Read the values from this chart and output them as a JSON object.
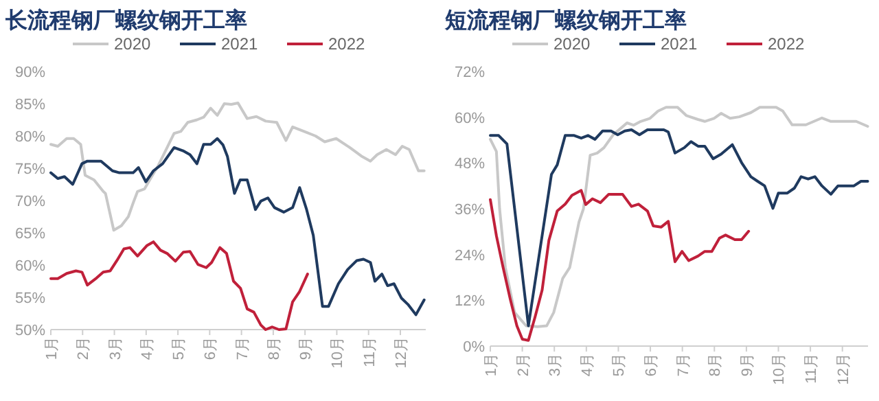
{
  "chart_data": [
    {
      "type": "line",
      "title": "长流程钢厂螺纹钢开工率",
      "legend": "top",
      "grid": false,
      "line_style": "solid",
      "marker": "none",
      "xlim": [
        1,
        12.8
      ],
      "xticks": [
        {
          "value": 1,
          "label": "1月"
        },
        {
          "value": 2,
          "label": "2月"
        },
        {
          "value": 3,
          "label": "3月"
        },
        {
          "value": 4,
          "label": "4月"
        },
        {
          "value": 5,
          "label": "5月"
        },
        {
          "value": 6,
          "label": "6月"
        },
        {
          "value": 7,
          "label": "7月"
        },
        {
          "value": 8,
          "label": "8月"
        },
        {
          "value": 9,
          "label": "9月"
        },
        {
          "value": 10,
          "label": "10月"
        },
        {
          "value": 11,
          "label": "11月"
        },
        {
          "value": 12,
          "label": "12月"
        }
      ],
      "ylim": [
        50,
        90
      ],
      "yticks": [
        {
          "value": 50,
          "label": "50%"
        },
        {
          "value": 55,
          "label": "55%"
        },
        {
          "value": 60,
          "label": "60%"
        },
        {
          "value": 65,
          "label": "65%"
        },
        {
          "value": 70,
          "label": "70%"
        },
        {
          "value": 75,
          "label": "75%"
        },
        {
          "value": 80,
          "label": "80%"
        },
        {
          "value": 85,
          "label": "85%"
        },
        {
          "value": 90,
          "label": "90%"
        }
      ],
      "series": [
        {
          "name": "2020",
          "color": "#c8c8c8",
          "x": [
            1.0,
            1.22,
            1.5,
            1.72,
            1.94,
            2.08,
            2.36,
            2.65,
            2.72,
            2.98,
            3.22,
            3.44,
            3.59,
            3.73,
            3.95,
            4.16,
            4.38,
            4.66,
            4.88,
            5.09,
            5.31,
            5.6,
            5.81,
            6.03,
            6.24,
            6.46,
            6.68,
            6.89,
            7.18,
            7.47,
            7.76,
            8.11,
            8.4,
            8.61,
            8.97,
            9.33,
            9.62,
            9.98,
            10.41,
            10.77,
            11.06,
            11.27,
            11.56,
            11.85,
            12.06,
            12.28,
            12.57,
            12.75
          ],
          "values": [
            78.7,
            78.4,
            79.6,
            79.6,
            78.7,
            73.9,
            73.2,
            71.4,
            71.1,
            65.4,
            66.1,
            67.5,
            69.6,
            71.4,
            71.8,
            73.6,
            75.4,
            78.2,
            80.4,
            80.7,
            82.1,
            82.5,
            82.9,
            84.3,
            83.2,
            85.0,
            84.9,
            85.1,
            82.7,
            83.0,
            82.3,
            82.1,
            79.3,
            81.4,
            80.7,
            80.0,
            79.1,
            79.6,
            78.2,
            76.9,
            76.1,
            77.1,
            77.9,
            77.1,
            78.4,
            77.9,
            74.6,
            74.6
          ]
        },
        {
          "name": "2021",
          "color": "#1f3a5f",
          "x": [
            1.0,
            1.22,
            1.43,
            1.69,
            1.98,
            2.15,
            2.58,
            2.94,
            3.16,
            3.59,
            3.76,
            3.99,
            4.23,
            4.52,
            4.88,
            5.16,
            5.38,
            5.6,
            5.81,
            6.03,
            6.24,
            6.42,
            6.56,
            6.78,
            6.96,
            7.18,
            7.44,
            7.61,
            7.83,
            8.04,
            8.33,
            8.61,
            8.83,
            9.05,
            9.26,
            9.55,
            9.74,
            10.05,
            10.34,
            10.63,
            10.84,
            11.06,
            11.2,
            11.42,
            11.6,
            11.8,
            12.03,
            12.24,
            12.49,
            12.75
          ],
          "values": [
            74.3,
            73.4,
            73.7,
            72.5,
            75.7,
            76.1,
            76.1,
            74.6,
            74.3,
            74.3,
            75.1,
            72.9,
            74.6,
            75.7,
            78.2,
            77.7,
            77.1,
            75.7,
            78.7,
            78.7,
            79.6,
            78.6,
            76.8,
            71.1,
            73.2,
            73.2,
            68.6,
            69.9,
            70.4,
            68.9,
            68.2,
            68.9,
            72.0,
            68.6,
            64.6,
            53.6,
            53.6,
            57.1,
            59.3,
            60.7,
            60.9,
            60.4,
            57.5,
            58.6,
            56.8,
            57.1,
            54.9,
            53.9,
            52.3,
            54.6
          ]
        },
        {
          "name": "2022",
          "color": "#c0203a",
          "x": [
            1.0,
            1.22,
            1.5,
            1.79,
            1.98,
            2.15,
            2.44,
            2.65,
            2.87,
            3.08,
            3.3,
            3.49,
            3.73,
            4.02,
            4.23,
            4.45,
            4.66,
            4.92,
            5.17,
            5.38,
            5.63,
            5.89,
            6.06,
            6.32,
            6.53,
            6.75,
            6.97,
            7.18,
            7.39,
            7.61,
            7.76,
            7.97,
            8.18,
            8.4,
            8.61,
            8.83,
            9.08
          ],
          "values": [
            57.9,
            57.9,
            58.7,
            59.1,
            58.9,
            56.9,
            58.0,
            58.9,
            59.1,
            60.7,
            62.5,
            62.7,
            61.4,
            63.0,
            63.6,
            62.3,
            61.8,
            60.6,
            62.0,
            62.1,
            60.1,
            59.6,
            60.4,
            62.7,
            61.8,
            57.5,
            56.4,
            53.2,
            52.7,
            50.7,
            50.0,
            50.4,
            50.0,
            50.1,
            54.3,
            55.9,
            58.6
          ]
        }
      ]
    },
    {
      "type": "line",
      "title": "短流程钢厂螺纹钢开工率",
      "legend": "top",
      "grid": false,
      "line_style": "solid",
      "marker": "none",
      "xlim": [
        1,
        12.8
      ],
      "xticks": [
        {
          "value": 1,
          "label": "1月"
        },
        {
          "value": 2,
          "label": "2月"
        },
        {
          "value": 3,
          "label": "3月"
        },
        {
          "value": 4,
          "label": "4月"
        },
        {
          "value": 5,
          "label": "5月"
        },
        {
          "value": 6,
          "label": "6月"
        },
        {
          "value": 7,
          "label": "7月"
        },
        {
          "value": 8,
          "label": "8月"
        },
        {
          "value": 9,
          "label": "9月"
        },
        {
          "value": 10,
          "label": "10月"
        },
        {
          "value": 11,
          "label": "11月"
        },
        {
          "value": 12,
          "label": "12月"
        }
      ],
      "ylim": [
        0,
        72
      ],
      "yticks": [
        {
          "value": 0,
          "label": "0%"
        },
        {
          "value": 12,
          "label": "12%"
        },
        {
          "value": 24,
          "label": "24%"
        },
        {
          "value": 36,
          "label": "36%"
        },
        {
          "value": 48,
          "label": "48%"
        },
        {
          "value": 60,
          "label": "60%"
        },
        {
          "value": 72,
          "label": "72%"
        }
      ],
      "series": [
        {
          "name": "2020",
          "color": "#c8c8c8",
          "x": [
            1.0,
            1.19,
            1.29,
            1.47,
            1.76,
            2.12,
            2.48,
            2.76,
            2.98,
            3.26,
            3.48,
            3.77,
            3.91,
            4.12,
            4.34,
            4.55,
            4.84,
            5.05,
            5.27,
            5.48,
            5.7,
            5.99,
            6.24,
            6.49,
            6.85,
            7.13,
            7.49,
            7.7,
            7.99,
            8.21,
            8.49,
            8.78,
            9.14,
            9.42,
            9.93,
            10.14,
            10.43,
            10.86,
            11.36,
            11.64,
            12.0,
            12.43,
            12.79
          ],
          "values": [
            54.2,
            51.0,
            36.0,
            20.6,
            8.8,
            5.3,
            5.1,
            5.3,
            8.8,
            17.7,
            20.6,
            32.5,
            36.0,
            50.0,
            50.6,
            52.0,
            55.4,
            56.9,
            58.5,
            57.9,
            58.9,
            59.7,
            61.6,
            62.6,
            62.6,
            60.4,
            59.4,
            58.9,
            59.7,
            61.0,
            59.7,
            60.1,
            61.2,
            62.6,
            62.6,
            61.6,
            58.0,
            58.0,
            59.8,
            58.9,
            58.9,
            58.9,
            57.6
          ]
        },
        {
          "name": "2021",
          "color": "#1f3a5f",
          "x": [
            1.0,
            1.26,
            1.52,
            2.19,
            2.91,
            3.09,
            3.34,
            3.62,
            3.84,
            4.05,
            4.27,
            4.51,
            4.77,
            4.98,
            5.2,
            5.41,
            5.66,
            5.91,
            6.42,
            6.56,
            6.77,
            7.06,
            7.27,
            7.49,
            7.7,
            7.96,
            8.21,
            8.56,
            8.85,
            9.14,
            9.35,
            9.57,
            9.83,
            10.0,
            10.28,
            10.5,
            10.71,
            10.93,
            11.14,
            11.36,
            11.64,
            11.86,
            12.15,
            12.36,
            12.58,
            12.79
          ],
          "values": [
            55.2,
            55.2,
            53.0,
            5.3,
            45.0,
            47.5,
            55.2,
            55.2,
            54.5,
            55.2,
            54.2,
            56.4,
            56.4,
            55.4,
            56.4,
            56.7,
            55.4,
            56.7,
            56.7,
            56.1,
            50.6,
            52.0,
            53.6,
            52.4,
            52.4,
            49.1,
            50.3,
            52.8,
            48.1,
            44.4,
            43.2,
            42.0,
            36.1,
            40.1,
            40.1,
            41.4,
            44.4,
            43.8,
            44.4,
            42.0,
            39.8,
            42.0,
            42.0,
            42.0,
            43.2,
            43.2
          ]
        },
        {
          "name": "2022",
          "color": "#c0203a",
          "x": [
            1.0,
            1.19,
            1.4,
            1.62,
            1.83,
            2.0,
            2.19,
            2.4,
            2.62,
            2.83,
            3.09,
            3.34,
            3.55,
            3.84,
            3.98,
            4.19,
            4.44,
            4.7,
            5.13,
            5.41,
            5.63,
            5.91,
            6.09,
            6.34,
            6.56,
            6.77,
            6.99,
            7.2,
            7.49,
            7.7,
            7.92,
            8.16,
            8.35,
            8.64,
            8.85,
            9.07
          ],
          "values": [
            38.4,
            28.9,
            20.6,
            12.4,
            5.3,
            1.8,
            1.5,
            7.7,
            14.7,
            27.7,
            35.4,
            37.2,
            39.5,
            40.8,
            37.1,
            38.6,
            37.6,
            39.8,
            39.8,
            36.6,
            37.2,
            35.4,
            31.5,
            31.2,
            32.7,
            22.1,
            24.8,
            22.4,
            23.6,
            24.8,
            24.8,
            28.3,
            29.1,
            27.9,
            27.9,
            30.1
          ]
        }
      ]
    }
  ]
}
